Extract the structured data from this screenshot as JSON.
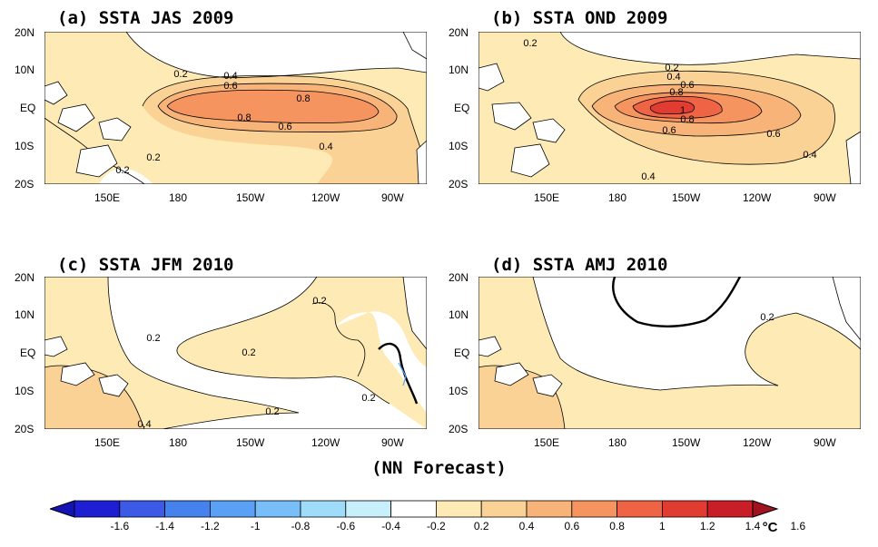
{
  "panels": [
    {
      "title": "(a) SSTA JAS 2009",
      "contour_labels": [
        "0.2",
        "0.4",
        "0.6",
        "0.8",
        "0.8",
        "0.6",
        "0.4",
        "0.2",
        "0.2"
      ]
    },
    {
      "title": "(b) SSTA OND 2009",
      "contour_labels": [
        "0.2",
        "0.2",
        "0.4",
        "0.6",
        "0.8",
        "1",
        "0.8",
        "0.6",
        "0.6",
        "0.4",
        "0.4"
      ]
    },
    {
      "title": "(c) SSTA JFM 2010",
      "contour_labels": [
        "0.2",
        "0.2",
        "0.2",
        "0.2",
        "0.2",
        "0.4"
      ]
    },
    {
      "title": "(d) SSTA AMJ 2010",
      "contour_labels": [
        "0.2"
      ]
    }
  ],
  "lat_ticks": [
    "20N",
    "10N",
    "EQ",
    "10S",
    "20S"
  ],
  "lon_ticks": [
    "150E",
    "180",
    "150W",
    "120W",
    "90W"
  ],
  "footer": "(NN Forecast)",
  "colorbar": {
    "tick_labels": [
      "-1.6",
      "-1.4",
      "-1.2",
      "-1",
      "-0.8",
      "-0.6",
      "-0.4",
      "-0.2",
      "0.2",
      "0.4",
      "0.6",
      "0.8",
      "1",
      "1.2",
      "1.4",
      "1.6"
    ],
    "unit": "°C",
    "colors": [
      "#1e1ed2",
      "#3c5ae6",
      "#4682ee",
      "#5aa0f5",
      "#78bef8",
      "#9fdcfa",
      "#c8f0fc",
      "#ffffff",
      "#fdeab4",
      "#fbd296",
      "#f8b478",
      "#f69460",
      "#f06446",
      "#e03c32",
      "#c81e28"
    ],
    "end_colors": [
      "#1414b4",
      "#a01420"
    ]
  }
}
